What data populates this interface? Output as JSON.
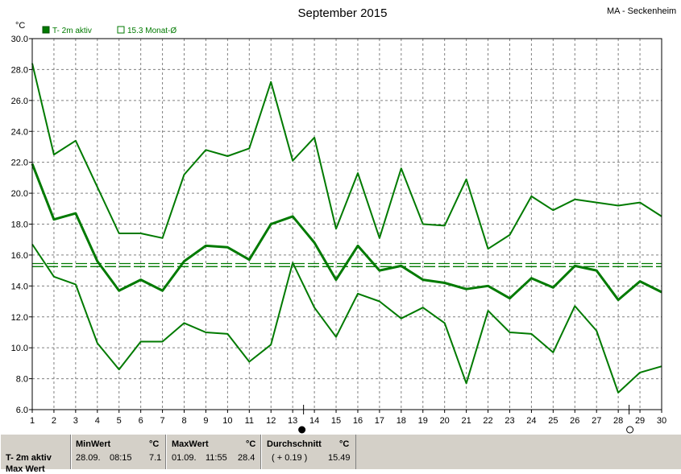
{
  "title": "September 2015",
  "station": "MA - Seckenheim",
  "legend": [
    {
      "label": "T- 2m aktiv",
      "style": "filled"
    },
    {
      "label": "15.3 Monat-Ø",
      "style": "outline"
    }
  ],
  "colors": {
    "series": "#007a00",
    "grid": "#808080",
    "panel": "#d4d0c8"
  },
  "chart_data": {
    "type": "line",
    "ylabel": "°C",
    "ylim": [
      6.0,
      30.0
    ],
    "y_ticks": [
      "6.0",
      "8.0",
      "10.0",
      "12.0",
      "14.0",
      "16.0",
      "18.0",
      "20.0",
      "22.0",
      "24.0",
      "26.0",
      "28.0",
      "30.0"
    ],
    "x": [
      "1",
      "2",
      "3",
      "4",
      "5",
      "6",
      "7",
      "8",
      "9",
      "10",
      "11",
      "12",
      "13",
      "14",
      "15",
      "16",
      "17",
      "18",
      "19",
      "20",
      "21",
      "22",
      "23",
      "24",
      "25",
      "26",
      "27",
      "28",
      "29",
      "30"
    ],
    "grid": true,
    "legend_position": "top-left",
    "series": [
      {
        "name": "",
        "role": "max",
        "values": [
          28.4,
          22.5,
          23.4,
          20.4,
          17.4,
          17.4,
          17.1,
          21.2,
          22.8,
          22.4,
          22.9,
          27.2,
          22.1,
          23.6,
          17.7,
          21.3,
          17.1,
          21.6,
          18.0,
          17.9,
          20.9,
          16.4,
          17.3,
          19.8,
          18.9,
          19.6,
          19.4,
          19.2,
          19.4,
          18.5
        ]
      },
      {
        "name": "T- 2m aktiv",
        "role": "mean",
        "values": [
          21.9,
          18.3,
          18.7,
          15.6,
          13.7,
          14.4,
          13.7,
          15.6,
          16.6,
          16.5,
          15.7,
          18.0,
          18.5,
          16.8,
          14.4,
          16.6,
          15.0,
          15.3,
          14.4,
          14.2,
          13.8,
          14.0,
          13.2,
          14.5,
          13.9,
          15.3,
          15.0,
          13.1,
          14.3,
          13.6
        ]
      },
      {
        "name": "",
        "role": "min",
        "values": [
          16.7,
          14.6,
          14.1,
          10.3,
          8.6,
          10.4,
          10.4,
          11.6,
          11.0,
          10.9,
          9.1,
          10.2,
          15.5,
          12.6,
          10.7,
          13.5,
          13.0,
          11.9,
          12.6,
          11.6,
          7.7,
          12.4,
          11.0,
          10.9,
          9.7,
          12.7,
          11.1,
          7.1,
          8.4,
          8.8
        ]
      }
    ],
    "monthly_mean": 15.3,
    "monthly_mean_band": [
      15.25,
      15.45
    ],
    "markers": [
      {
        "day": "13",
        "symbol": "filled-circle"
      },
      {
        "day": "28",
        "symbol": "open-circle"
      }
    ]
  },
  "stats": {
    "series_label": "T- 2m aktiv",
    "second_label": "Max Wert",
    "min": {
      "label": "MinWert",
      "unit": "°C",
      "date": "28.09.",
      "time": "08:15",
      "value": "7.1"
    },
    "max": {
      "label": "MaxWert",
      "unit": "°C",
      "date": "01.09.",
      "time": "11:55",
      "value": "28.4"
    },
    "avg": {
      "label": "Durchschnitt",
      "unit": "°C",
      "delta": "( + 0.19 )",
      "value": "15.49"
    }
  }
}
